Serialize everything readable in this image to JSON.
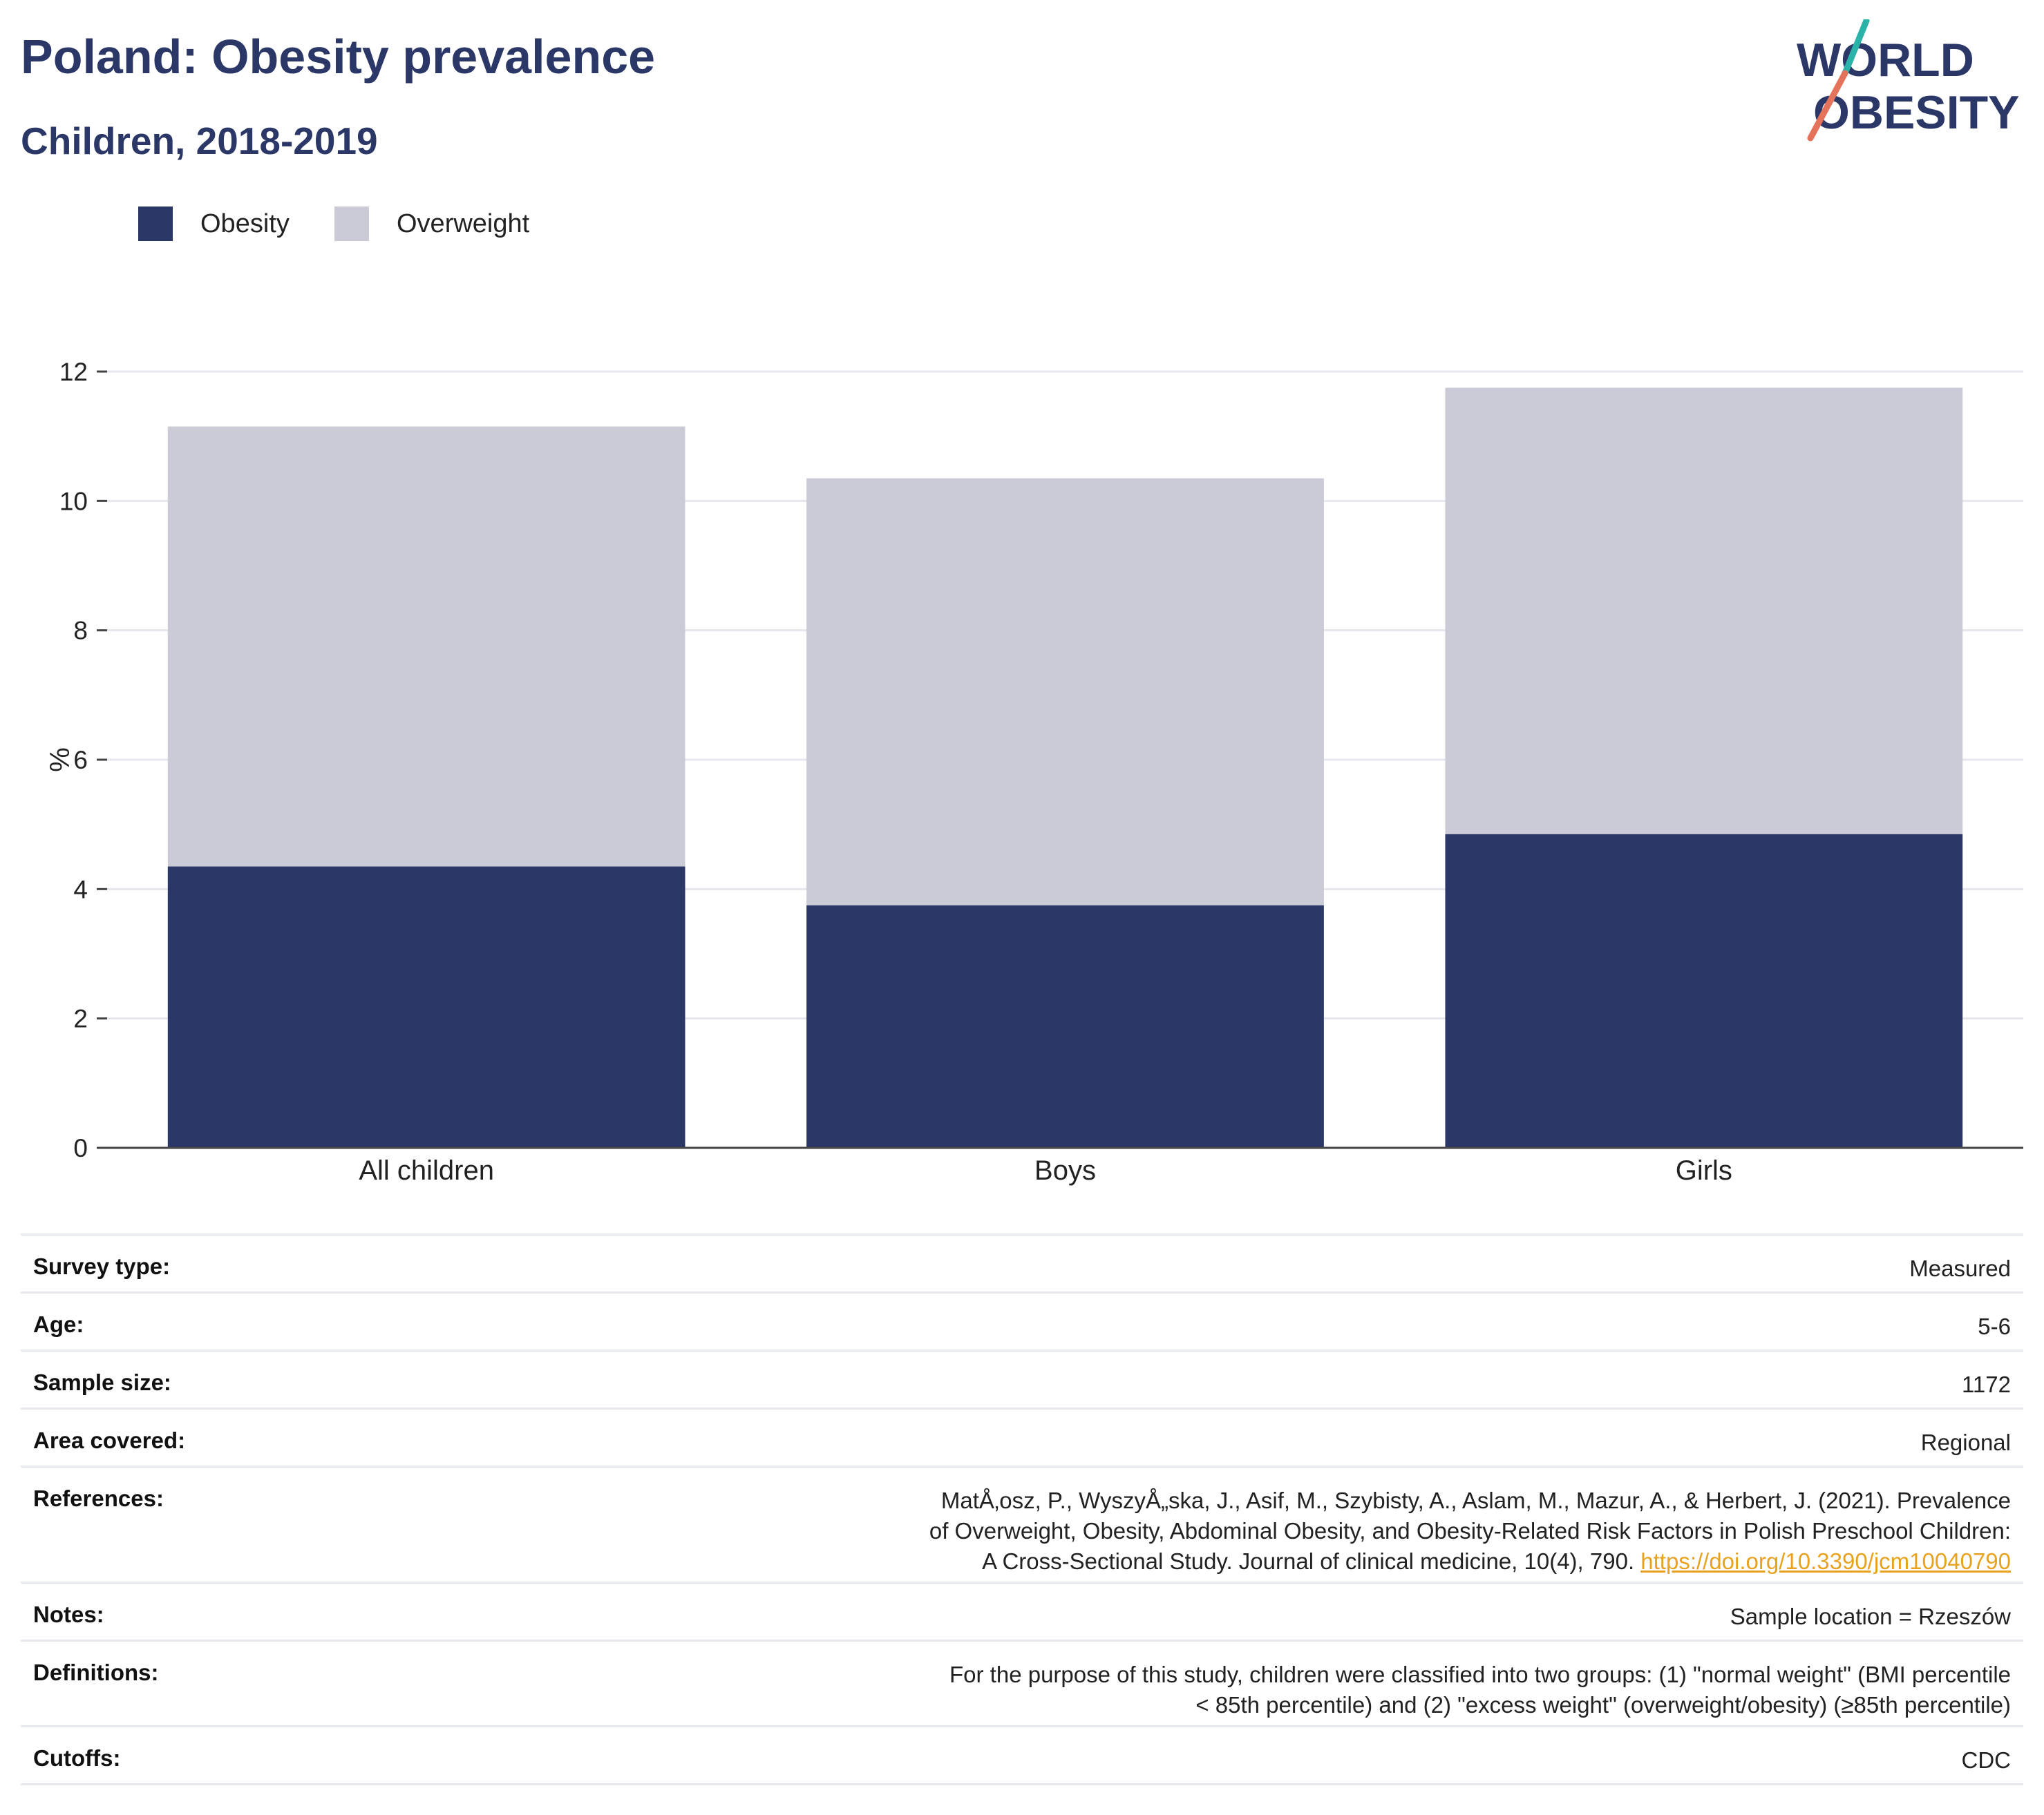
{
  "header": {
    "title": "Poland: Obesity prevalence",
    "subtitle": "Children, 2018-2019"
  },
  "logo": {
    "line1": "WORLD",
    "line2": "OBESITY"
  },
  "colors": {
    "obesity": "#2b3766",
    "overweight": "#cacbd6",
    "title": "#2b3766",
    "link": "#e8a21e",
    "logo_teal": "#2bb3a9",
    "logo_coral": "#e5735c"
  },
  "chart_data": {
    "type": "bar",
    "stacked": true,
    "categories": [
      "All children",
      "Boys",
      "Girls"
    ],
    "series": [
      {
        "name": "Obesity",
        "values": [
          4.35,
          3.75,
          4.85
        ]
      },
      {
        "name": "Overweight",
        "values": [
          6.8,
          6.6,
          6.9
        ]
      }
    ],
    "ylabel": "%",
    "ylim": [
      0,
      12
    ],
    "yticks": [
      0,
      2,
      4,
      6,
      8,
      10,
      12
    ],
    "grid": true,
    "legend_position": "top-left"
  },
  "meta": {
    "survey_type": {
      "label": "Survey type:",
      "value": "Measured"
    },
    "age": {
      "label": "Age:",
      "value": "5-6"
    },
    "sample_size": {
      "label": "Sample size:",
      "value": "1172"
    },
    "area": {
      "label": "Area covered:",
      "value": "Regional"
    },
    "references": {
      "label": "References:",
      "text": "MatÅ‚osz, P., WyszyÅ„ska, J., Asif, M., Szybisty, A., Aslam, M., Mazur, A., & Herbert, J. (2021). Prevalence of Overweight, Obesity, Abdominal Obesity, and Obesity-Related Risk Factors in Polish Preschool Children: A Cross-Sectional Study. Journal of clinical medicine, 10(4), 790.",
      "link": "https://doi.org/10.3390/jcm10040790"
    },
    "notes": {
      "label": "Notes:",
      "value": "Sample location = Rzeszów"
    },
    "definitions": {
      "label": "Definitions:",
      "value": "For the purpose of this study, children were classified into two groups: (1) \"normal weight\" (BMI percentile < 85th percentile) and (2) \"excess weight\" (overweight/obesity) (≥85th percentile)"
    },
    "cutoffs": {
      "label": "Cutoffs:",
      "value": "CDC"
    }
  }
}
